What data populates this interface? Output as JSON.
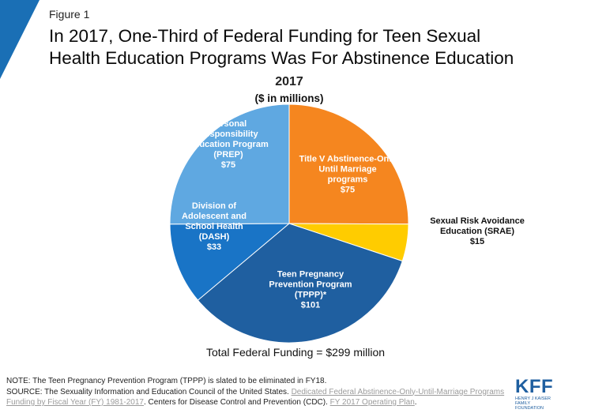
{
  "figure_label": "Figure 1",
  "title_lines": [
    "In 2017, One-Third of Federal Funding for Teen Sexual",
    "Health Education Programs Was For Abstinence Education"
  ],
  "colors": {
    "corner": "#1a6fb5",
    "title_v": "#f5861f",
    "srae": "#ffcc00",
    "tppp": "#1f5fa0",
    "dash": "#1974c6",
    "prep": "#5fa8e1"
  },
  "chart_data": {
    "type": "pie",
    "title": "2017",
    "subtitle": "($ in millions)",
    "total_label": "Total Federal Funding = $299 million",
    "slices": [
      {
        "name": "Title V Abstinence-Only Until Marriage programs",
        "label_lines": [
          "Title V Abstinence-Only",
          "Until Marriage",
          "programs"
        ],
        "value": 75,
        "value_label": "$75",
        "color": "#f5861f",
        "label_color": "#ffffff"
      },
      {
        "name": "Sexual Risk Avoidance Education (SRAE)",
        "label_lines": [
          "Sexual Risk Avoidance",
          "Education (SRAE)"
        ],
        "value": 15,
        "value_label": "$15",
        "color": "#ffcc00",
        "label_color": "#111111"
      },
      {
        "name": "Teen Pregnancy Prevention Program (TPPP)*",
        "label_lines": [
          "Teen Pregnancy",
          "Prevention Program",
          "(TPPP)*"
        ],
        "value": 101,
        "value_label": "$101",
        "color": "#1f5fa0",
        "label_color": "#ffffff"
      },
      {
        "name": "Division of Adolescent and School Health (DASH)",
        "label_lines": [
          "Division of",
          "Adolescent and",
          "School Health",
          "(DASH)"
        ],
        "value": 33,
        "value_label": "$33",
        "color": "#1974c6",
        "label_color": "#ffffff"
      },
      {
        "name": "Personal Responsibility Education Program (PREP)",
        "label_lines": [
          "Personal",
          "Responsibility",
          "Education Program",
          "(PREP)"
        ],
        "value": 75,
        "value_label": "$75",
        "color": "#5fa8e1",
        "label_color": "#ffffff"
      }
    ]
  },
  "notes": {
    "note": "NOTE: The Teen Pregnancy Prevention Program (TPPP) is slated to be eliminated in FY18.",
    "source_prefix": "SOURCE: The Sexuality Information and Education Council of the United States.",
    "source_link1": "Dedicated Federal Abstinence-Only-Until-Marriage Programs Funding by Fiscal Year (FY) 1981-2017",
    "source_mid": ". Centers for Disease Control and Prevention (CDC).",
    "source_link2": "FY 2017 Operating Plan",
    "source_end": "."
  },
  "logo": {
    "main": "KFF",
    "sub": "HENRY J KAISER FAMILY FOUNDATION"
  }
}
